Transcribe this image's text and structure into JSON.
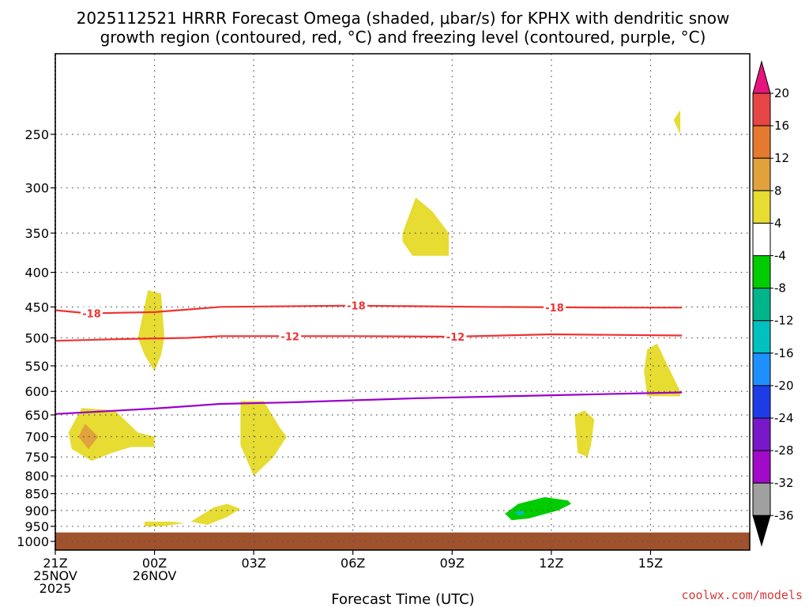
{
  "chart_data": {
    "type": "time-height cross section",
    "title_line1": "2025112521 HRRR Forecast Omega (shaded, μbar/s) for KPHX with dendritic snow",
    "title_line2": "growth region (contoured, red, °C) and freezing level (contoured, purple, °C)",
    "xlabel": "Forecast Time (UTC)",
    "credit": "coolwx.com/models",
    "x_range_hours": [
      -3,
      18
    ],
    "x_ticks": [
      {
        "hour": -3,
        "lines": [
          "21Z",
          "25NOV",
          "2025"
        ]
      },
      {
        "hour": 0,
        "lines": [
          "00Z",
          "26NOV"
        ]
      },
      {
        "hour": 3,
        "lines": [
          "03Z"
        ]
      },
      {
        "hour": 6,
        "lines": [
          "06Z"
        ]
      },
      {
        "hour": 9,
        "lines": [
          "09Z"
        ]
      },
      {
        "hour": 12,
        "lines": [
          "12Z"
        ]
      },
      {
        "hour": 15,
        "lines": [
          "15Z"
        ]
      }
    ],
    "y_range_hpa": [
      1030,
      190
    ],
    "y_ticks": [
      250,
      300,
      350,
      400,
      450,
      500,
      550,
      600,
      650,
      700,
      750,
      800,
      850,
      900,
      950,
      1000
    ],
    "surface_pressure_hpa": 970,
    "surface_color": "#a0522d",
    "omega_regions": [
      {
        "level": "4 to 8",
        "color": "#e6dc32",
        "points": [
          [
            -2.2,
            635
          ],
          [
            -1.2,
            640
          ],
          [
            -0.5,
            690
          ],
          [
            0,
            700
          ],
          [
            0,
            725
          ],
          [
            -0.7,
            725
          ],
          [
            -1.3,
            740
          ],
          [
            -1.9,
            760
          ],
          [
            -2.5,
            730
          ],
          [
            -2.6,
            690
          ]
        ]
      },
      {
        "level": "8 to 12",
        "color": "#e1a13b",
        "points": [
          [
            -2.1,
            670
          ],
          [
            -1.7,
            700
          ],
          [
            -2.0,
            730
          ],
          [
            -2.3,
            700
          ]
        ]
      },
      {
        "level": "4 to 8",
        "color": "#e6dc32",
        "points": [
          [
            -0.5,
            500
          ],
          [
            -0.2,
            425
          ],
          [
            0.2,
            430
          ],
          [
            0.3,
            500
          ],
          [
            0.2,
            530
          ],
          [
            0,
            560
          ],
          [
            -0.3,
            530
          ]
        ]
      },
      {
        "level": "4 to 8",
        "color": "#e6dc32",
        "points": [
          [
            -0.3,
            935
          ],
          [
            0.5,
            935
          ],
          [
            0.9,
            940
          ],
          [
            0.2,
            950
          ],
          [
            -0.3,
            950
          ]
        ]
      },
      {
        "level": "4 to 8",
        "color": "#e6dc32",
        "points": [
          [
            1.1,
            935
          ],
          [
            1.8,
            890
          ],
          [
            2.2,
            880
          ],
          [
            2.6,
            895
          ],
          [
            2.2,
            920
          ],
          [
            1.6,
            945
          ]
        ]
      },
      {
        "level": "4 to 8",
        "color": "#e6dc32",
        "points": [
          [
            2.6,
            620
          ],
          [
            3.3,
            620
          ],
          [
            3.8,
            680
          ],
          [
            4.0,
            700
          ],
          [
            3.6,
            750
          ],
          [
            3.0,
            800
          ],
          [
            2.6,
            720
          ]
        ]
      },
      {
        "level": "4 to 8",
        "color": "#e6dc32",
        "points": [
          [
            7.5,
            350
          ],
          [
            7.9,
            310
          ],
          [
            8.4,
            325
          ],
          [
            8.9,
            350
          ],
          [
            8.9,
            378
          ],
          [
            8.2,
            378
          ],
          [
            7.8,
            378
          ],
          [
            7.5,
            360
          ]
        ]
      },
      {
        "level": "4 to 8",
        "color": "#e6dc32",
        "points": [
          [
            12.7,
            650
          ],
          [
            13.0,
            640
          ],
          [
            13.3,
            660
          ],
          [
            13.2,
            720
          ],
          [
            13.1,
            750
          ],
          [
            12.8,
            740
          ]
        ]
      },
      {
        "level": "4 to 8",
        "color": "#e6dc32",
        "points": [
          [
            14.9,
            520
          ],
          [
            15.2,
            510
          ],
          [
            15.6,
            560
          ],
          [
            15.9,
            600
          ],
          [
            15.9,
            610
          ],
          [
            14.9,
            610
          ],
          [
            14.8,
            560
          ]
        ]
      },
      {
        "level": "4 to 8",
        "color": "#e6dc32",
        "points": [
          [
            15.9,
            230
          ],
          [
            15.7,
            238
          ],
          [
            15.9,
            250
          ]
        ]
      },
      {
        "level": "-4 to -8",
        "color": "#00cc00",
        "points": [
          [
            10.6,
            910
          ],
          [
            11.0,
            880
          ],
          [
            11.8,
            860
          ],
          [
            12.5,
            870
          ],
          [
            12.6,
            880
          ],
          [
            12.2,
            900
          ],
          [
            11.3,
            925
          ],
          [
            10.8,
            930
          ]
        ]
      },
      {
        "level": "-12 to -16",
        "color": "#00c0c0",
        "points": [
          [
            10.9,
            905
          ],
          [
            11.1,
            900
          ],
          [
            11.2,
            910
          ],
          [
            11.0,
            915
          ]
        ]
      }
    ],
    "isotherms": [
      {
        "label": "-18",
        "color": "#ee3333",
        "points": [
          [
            -3,
            455
          ],
          [
            -2,
            460
          ],
          [
            0,
            458
          ],
          [
            2,
            450
          ],
          [
            6,
            448
          ],
          [
            10,
            450
          ],
          [
            14,
            451
          ],
          [
            15.95,
            451
          ]
        ],
        "label_hours": [
          -1.9,
          6.1,
          12.1
        ]
      },
      {
        "label": "-12",
        "color": "#ee3333",
        "points": [
          [
            -3,
            505
          ],
          [
            -1,
            502
          ],
          [
            1,
            500
          ],
          [
            2,
            497
          ],
          [
            6,
            497
          ],
          [
            9,
            498
          ],
          [
            12,
            494
          ],
          [
            15.95,
            496
          ]
        ],
        "label_hours": [
          4.1,
          9.1
        ]
      },
      {
        "label": "0",
        "color": "#9900cc",
        "points": [
          [
            -3,
            648
          ],
          [
            0,
            636
          ],
          [
            2,
            626
          ],
          [
            4,
            623
          ],
          [
            8,
            614
          ],
          [
            12,
            608
          ],
          [
            15.95,
            602
          ]
        ],
        "label_hours": []
      }
    ],
    "colorbar": {
      "units": "μbar/s",
      "labels": [
        "20",
        "16",
        "12",
        "8",
        "4",
        "-4",
        "-8",
        "-12",
        "-16",
        "-20",
        "-24",
        "-28",
        "-32",
        "-36"
      ],
      "colors": [
        "#e64646",
        "#e57a2e",
        "#e1a13b",
        "#e6dc32",
        "#ffffff",
        "#00cc00",
        "#00b48c",
        "#00c0c0",
        "#1e90ff",
        "#1e3ce6",
        "#7818c8",
        "#a00ac8",
        "#a0a0a0"
      ],
      "top_arrow_color": "#e6157d",
      "bottom_arrow_color": "#000000"
    }
  }
}
